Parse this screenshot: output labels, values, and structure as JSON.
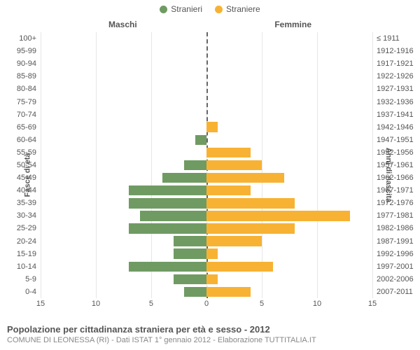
{
  "legend": {
    "male": {
      "label": "Stranieri",
      "color": "#6f9b63"
    },
    "female": {
      "label": "Straniere",
      "color": "#f7b234"
    }
  },
  "titles": {
    "left": "Maschi",
    "right": "Femmine",
    "y_left": "Fasce di età",
    "y_right": "Anni di nascita"
  },
  "axis": {
    "xmin": -15,
    "xmax": 15,
    "ticks": [
      15,
      10,
      5,
      0,
      5,
      10,
      15
    ],
    "tick_positions_pct": [
      0,
      16.67,
      33.33,
      50,
      66.67,
      83.33,
      100
    ],
    "gridline_color": "#e6e6e6",
    "centerline_color": "#666666"
  },
  "rows": [
    {
      "age": "100+",
      "years": "≤ 1911",
      "m": 0,
      "f": 0
    },
    {
      "age": "95-99",
      "years": "1912-1916",
      "m": 0,
      "f": 0
    },
    {
      "age": "90-94",
      "years": "1917-1921",
      "m": 0,
      "f": 0
    },
    {
      "age": "85-89",
      "years": "1922-1926",
      "m": 0,
      "f": 0
    },
    {
      "age": "80-84",
      "years": "1927-1931",
      "m": 0,
      "f": 0
    },
    {
      "age": "75-79",
      "years": "1932-1936",
      "m": 0,
      "f": 0
    },
    {
      "age": "70-74",
      "years": "1937-1941",
      "m": 0,
      "f": 0
    },
    {
      "age": "65-69",
      "years": "1942-1946",
      "m": 0,
      "f": 1
    },
    {
      "age": "60-64",
      "years": "1947-1951",
      "m": 1,
      "f": 0
    },
    {
      "age": "55-59",
      "years": "1952-1956",
      "m": 0,
      "f": 4
    },
    {
      "age": "50-54",
      "years": "1957-1961",
      "m": 2,
      "f": 5
    },
    {
      "age": "45-49",
      "years": "1962-1966",
      "m": 4,
      "f": 7
    },
    {
      "age": "40-44",
      "years": "1967-1971",
      "m": 7,
      "f": 4
    },
    {
      "age": "35-39",
      "years": "1972-1976",
      "m": 7,
      "f": 8
    },
    {
      "age": "30-34",
      "years": "1977-1981",
      "m": 6,
      "f": 13
    },
    {
      "age": "25-29",
      "years": "1982-1986",
      "m": 7,
      "f": 8
    },
    {
      "age": "20-24",
      "years": "1987-1991",
      "m": 3,
      "f": 5
    },
    {
      "age": "15-19",
      "years": "1992-1996",
      "m": 3,
      "f": 1
    },
    {
      "age": "10-14",
      "years": "1997-2001",
      "m": 7,
      "f": 6
    },
    {
      "age": "5-9",
      "years": "2002-2006",
      "m": 3,
      "f": 1
    },
    {
      "age": "0-4",
      "years": "2007-2011",
      "m": 2,
      "f": 4
    }
  ],
  "footer": {
    "title": "Popolazione per cittadinanza straniera per età e sesso - 2012",
    "subtitle": "COMUNE DI LEONESSA (RI) - Dati ISTAT 1° gennaio 2012 - Elaborazione TUTTITALIA.IT"
  },
  "style": {
    "background": "#ffffff",
    "bar_height_ratio": 0.8,
    "label_fontsize": 11,
    "title_fontsize": 12
  }
}
